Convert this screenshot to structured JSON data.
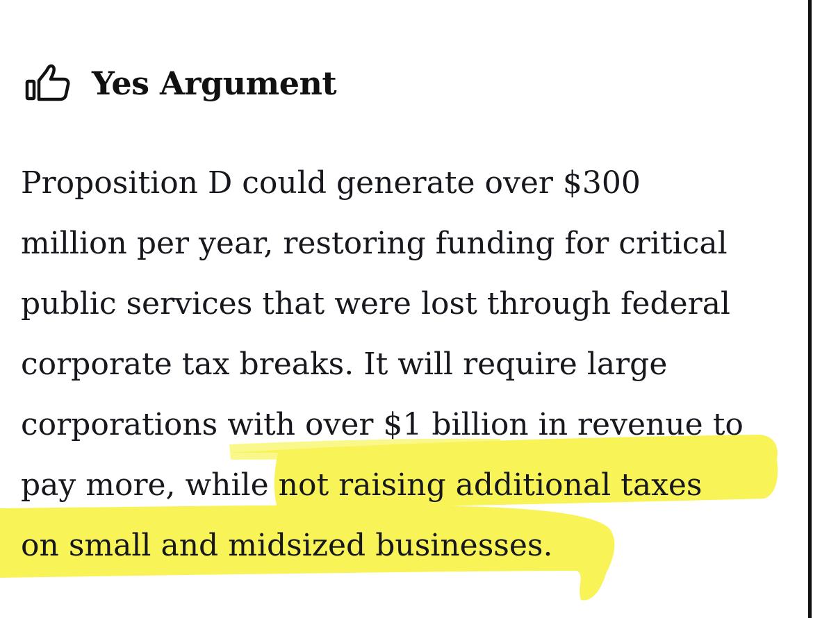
{
  "header": {
    "icon": "thumbs-up-icon",
    "title": "Yes Argument"
  },
  "argument": {
    "lines": [
      "Proposition D could generate over $300",
      "million per year, restoring funding for critical",
      "public services that were lost through federal",
      "corporate tax breaks. It will require large",
      "corporations with over $1 billion in revenue to",
      "pay more, while not raising additional taxes",
      "on small and midsized businesses."
    ]
  },
  "colors": {
    "highlight": "#f7f23a",
    "text": "#16181d",
    "edge": "#111111"
  }
}
